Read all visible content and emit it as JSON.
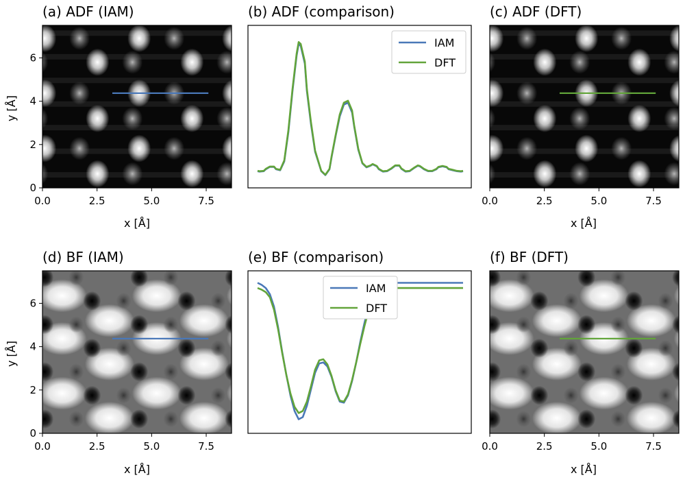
{
  "figure": {
    "background": "#ffffff",
    "colors": {
      "iam": "#4a78b8",
      "dft": "#62a43a",
      "axes": "#000000"
    }
  },
  "chart_data": [
    {
      "id": "a",
      "type": "heatmap",
      "title": "(a) ADF (IAM)",
      "xlabel": "x [Å]",
      "ylabel": "y [Å]",
      "xlim": [
        0,
        8.66
      ],
      "ylim": [
        0,
        7.5
      ],
      "xticks": [
        "0.0",
        "2.5",
        "5.0",
        "7.5"
      ],
      "yticks": [
        "0",
        "2",
        "4",
        "6"
      ],
      "colormap": "gray",
      "pattern": "ADF",
      "annotations": [
        {
          "type": "line-profile",
          "x": [
            3.2,
            7.6
          ],
          "y": [
            4.37,
            4.37
          ],
          "color": "#4a78b8"
        }
      ]
    },
    {
      "id": "b",
      "type": "line",
      "title": "(b) ADF (comparison)",
      "xlabel": "",
      "ylabel": "",
      "axis_ticks": false,
      "legend_position": "upper-right",
      "series": [
        {
          "name": "IAM",
          "color": "#4a78b8",
          "x": [
            0,
            1,
            3,
            4,
            6,
            8,
            9,
            11,
            13,
            15,
            17,
            19,
            20,
            21,
            23,
            24,
            26,
            28,
            31,
            33,
            35,
            36,
            38,
            40,
            42,
            44,
            46,
            47,
            49,
            51,
            53,
            55,
            56,
            58,
            59,
            61,
            63,
            65,
            67,
            69,
            70,
            72,
            74,
            76,
            78,
            79,
            81,
            83,
            85,
            87,
            88,
            90,
            92,
            93,
            95,
            97,
            99,
            100
          ],
          "y": [
            0.5,
            0.48,
            0.5,
            0.6,
            0.72,
            0.72,
            0.6,
            0.55,
            1.0,
            2.5,
            4.6,
            6.4,
            7.0,
            6.9,
            6.0,
            4.6,
            2.9,
            1.5,
            0.5,
            0.3,
            0.6,
            1.2,
            2.3,
            3.3,
            3.9,
            4.0,
            3.5,
            2.8,
            1.6,
            0.9,
            0.7,
            0.78,
            0.85,
            0.75,
            0.6,
            0.48,
            0.5,
            0.62,
            0.78,
            0.78,
            0.62,
            0.48,
            0.5,
            0.65,
            0.78,
            0.75,
            0.6,
            0.5,
            0.5,
            0.6,
            0.7,
            0.75,
            0.7,
            0.6,
            0.55,
            0.5,
            0.48,
            0.5
          ]
        },
        {
          "name": "DFT",
          "color": "#62a43a",
          "x": [
            0,
            1,
            3,
            4,
            6,
            8,
            9,
            11,
            13,
            15,
            17,
            19,
            20,
            21,
            23,
            24,
            26,
            28,
            31,
            33,
            35,
            36,
            38,
            40,
            42,
            44,
            46,
            47,
            49,
            51,
            53,
            55,
            56,
            58,
            59,
            61,
            63,
            65,
            67,
            69,
            70,
            72,
            74,
            76,
            78,
            79,
            81,
            83,
            85,
            87,
            88,
            90,
            92,
            93,
            95,
            97,
            99,
            100
          ],
          "y": [
            0.52,
            0.5,
            0.52,
            0.62,
            0.74,
            0.74,
            0.62,
            0.57,
            1.05,
            2.6,
            4.7,
            6.5,
            7.1,
            7.0,
            6.1,
            4.7,
            3.0,
            1.55,
            0.52,
            0.32,
            0.62,
            1.25,
            2.35,
            3.4,
            4.0,
            4.1,
            3.6,
            2.85,
            1.65,
            0.92,
            0.72,
            0.8,
            0.87,
            0.77,
            0.62,
            0.5,
            0.52,
            0.64,
            0.8,
            0.8,
            0.64,
            0.5,
            0.52,
            0.67,
            0.8,
            0.77,
            0.62,
            0.52,
            0.52,
            0.62,
            0.72,
            0.77,
            0.72,
            0.62,
            0.57,
            0.52,
            0.5,
            0.52
          ]
        }
      ],
      "ylim": [
        0.0,
        7.6
      ]
    },
    {
      "id": "c",
      "type": "heatmap",
      "title": "(c) ADF (DFT)",
      "xlabel": "x [Å]",
      "ylabel": "",
      "xlim": [
        0,
        8.66
      ],
      "ylim": [
        0,
        7.5
      ],
      "xticks": [
        "0.0",
        "2.5",
        "5.0",
        "7.5"
      ],
      "yticks": [],
      "colormap": "gray",
      "pattern": "ADF",
      "annotations": [
        {
          "type": "line-profile",
          "x": [
            3.2,
            7.6
          ],
          "y": [
            4.37,
            4.37
          ],
          "color": "#62a43a"
        }
      ]
    },
    {
      "id": "d",
      "type": "heatmap",
      "title": "(d) BF (IAM)",
      "xlabel": "x [Å]",
      "ylabel": "y [Å]",
      "xlim": [
        0,
        8.66
      ],
      "ylim": [
        0,
        7.5
      ],
      "xticks": [
        "0.0",
        "2.5",
        "5.0",
        "7.5"
      ],
      "yticks": [
        "0",
        "2",
        "4",
        "6"
      ],
      "colormap": "gray",
      "pattern": "BF",
      "annotations": [
        {
          "type": "line-profile",
          "x": [
            3.2,
            7.6
          ],
          "y": [
            4.37,
            4.37
          ],
          "color": "#4a78b8"
        }
      ]
    },
    {
      "id": "e",
      "type": "line",
      "title": "(e) BF (comparison)",
      "xlabel": "",
      "ylabel": "",
      "axis_ticks": false,
      "legend_position": "upper-center",
      "series": [
        {
          "name": "IAM",
          "color": "#4a78b8",
          "x": [
            0,
            2,
            4,
            6,
            8,
            10,
            12,
            14,
            16,
            18,
            20,
            22,
            24,
            26,
            28,
            30,
            32,
            34,
            36,
            38,
            40,
            42,
            44,
            46,
            48,
            50,
            52,
            54,
            56,
            58,
            60,
            62,
            64,
            66,
            68,
            70,
            72,
            74,
            76,
            78,
            80,
            82,
            84,
            86,
            88,
            90,
            92,
            94,
            96,
            98,
            100
          ],
          "y": [
            6.95,
            6.85,
            6.7,
            6.4,
            5.8,
            4.8,
            3.6,
            2.5,
            1.5,
            0.75,
            0.35,
            0.45,
            1.0,
            1.8,
            2.6,
            3.05,
            3.1,
            2.9,
            2.4,
            1.7,
            1.2,
            1.15,
            1.5,
            2.2,
            3.1,
            4.1,
            5.0,
            5.8,
            6.4,
            6.8,
            7.0,
            7.05,
            7.0,
            6.95,
            6.95,
            6.95,
            6.95,
            6.95,
            6.95,
            6.95,
            6.95,
            6.95,
            6.95,
            6.95,
            6.95,
            6.95,
            6.95,
            6.95,
            6.95,
            6.95,
            6.95
          ]
        },
        {
          "name": "DFT",
          "color": "#62a43a",
          "x": [
            0,
            2,
            4,
            6,
            8,
            10,
            12,
            14,
            16,
            18,
            20,
            22,
            24,
            26,
            28,
            30,
            32,
            34,
            36,
            38,
            40,
            42,
            44,
            46,
            48,
            50,
            52,
            54,
            56,
            58,
            60,
            62,
            64,
            66,
            68,
            70,
            72,
            74,
            76,
            78,
            80,
            82,
            84,
            86,
            88,
            90,
            92,
            94,
            96,
            98,
            100
          ],
          "y": [
            6.7,
            6.62,
            6.5,
            6.25,
            5.65,
            4.7,
            3.55,
            2.5,
            1.6,
            0.95,
            0.65,
            0.75,
            1.2,
            1.95,
            2.75,
            3.2,
            3.25,
            3.0,
            2.45,
            1.75,
            1.25,
            1.2,
            1.55,
            2.25,
            3.1,
            4.0,
            4.85,
            5.6,
            6.15,
            6.5,
            6.7,
            6.75,
            6.7,
            6.7,
            6.7,
            6.7,
            6.7,
            6.7,
            6.7,
            6.7,
            6.7,
            6.7,
            6.7,
            6.7,
            6.7,
            6.7,
            6.7,
            6.7,
            6.7,
            6.7,
            6.7
          ]
        }
      ],
      "ylim": [
        0.0,
        7.2
      ]
    },
    {
      "id": "f",
      "type": "heatmap",
      "title": "(f) BF (DFT)",
      "xlabel": "x [Å]",
      "ylabel": "",
      "xlim": [
        0,
        8.66
      ],
      "ylim": [
        0,
        7.5
      ],
      "xticks": [
        "0.0",
        "2.5",
        "5.0",
        "7.5"
      ],
      "yticks": [],
      "colormap": "gray",
      "pattern": "BF",
      "annotations": [
        {
          "type": "line-profile",
          "x": [
            3.2,
            7.6
          ],
          "y": [
            4.37,
            4.37
          ],
          "color": "#62a43a"
        }
      ]
    }
  ]
}
